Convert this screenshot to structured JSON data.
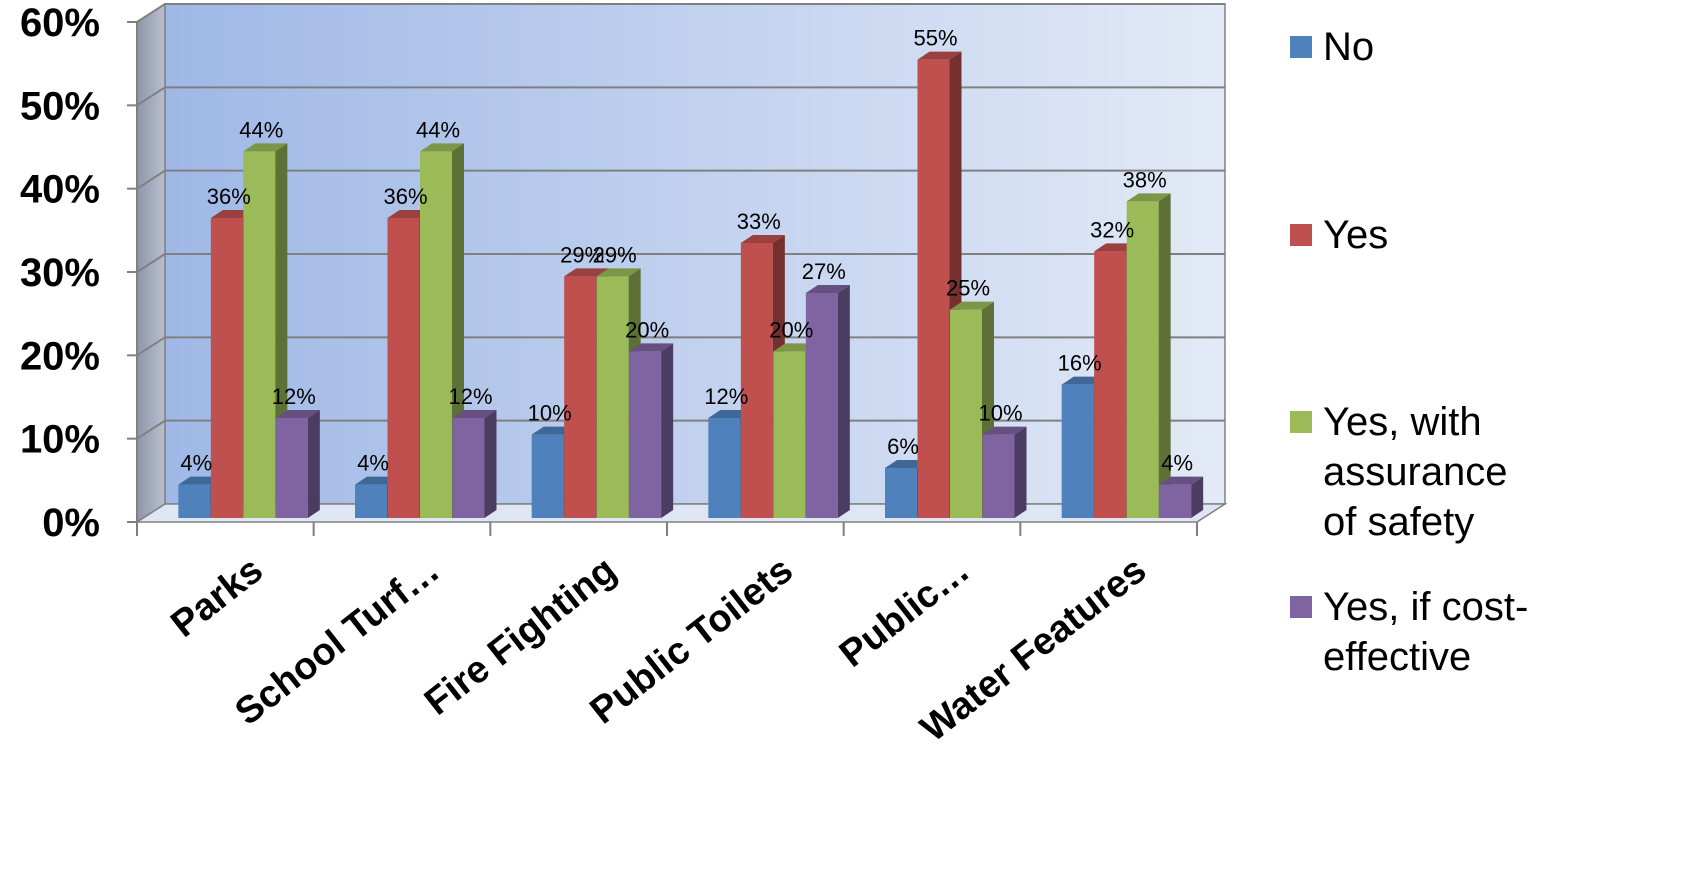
{
  "chart_data": {
    "type": "bar",
    "title": "",
    "xlabel": "",
    "ylabel": "",
    "ylim": [
      0,
      0.6
    ],
    "yticks": [
      "0%",
      "10%",
      "20%",
      "30%",
      "40%",
      "50%",
      "60%"
    ],
    "categories": [
      "Parks",
      "School Turf…",
      "Fire Fighting",
      "Public Toilets",
      "Public…",
      "Water Features"
    ],
    "series": [
      {
        "name": "No",
        "color": "#4F81BD",
        "values": [
          0.04,
          0.04,
          0.1,
          0.12,
          0.06,
          0.16
        ],
        "labels": [
          "4%",
          "4%",
          "10%",
          "12%",
          "6%",
          "16%"
        ]
      },
      {
        "name": "Yes",
        "color": "#C0504D",
        "values": [
          0.36,
          0.36,
          0.29,
          0.33,
          0.55,
          0.32
        ],
        "labels": [
          "36%",
          "36%",
          "29%",
          "33%",
          "55%",
          "32%"
        ]
      },
      {
        "name": "Yes, with assurance of safety",
        "color": "#9BBB59",
        "values": [
          0.44,
          0.44,
          0.29,
          0.2,
          0.25,
          0.38
        ],
        "labels": [
          "44%",
          "44%",
          "29%",
          "20%",
          "25%",
          "38%"
        ]
      },
      {
        "name": "Yes, if cost-effective",
        "color": "#8064A2",
        "values": [
          0.12,
          0.12,
          0.2,
          0.27,
          0.1,
          0.04
        ],
        "labels": [
          "12%",
          "12%",
          "20%",
          "27%",
          "10%",
          "4%"
        ]
      }
    ],
    "legend_position": "right",
    "grid": true,
    "legend_lines": [
      [
        "No"
      ],
      [
        "Yes"
      ],
      [
        "Yes, with",
        "assurance",
        "of safety"
      ],
      [
        "Yes, if cost-",
        "effective"
      ]
    ]
  }
}
